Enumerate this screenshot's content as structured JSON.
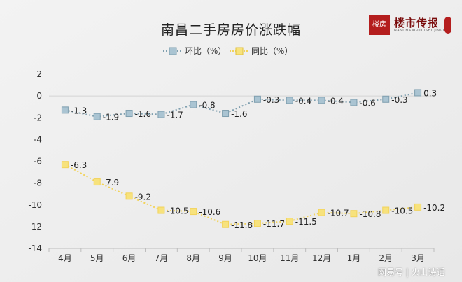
{
  "chart_data": {
    "type": "line",
    "title": "南昌二手房房价涨跌幅",
    "categories": [
      "4月",
      "5月",
      "6月",
      "7月",
      "8月",
      "9月",
      "10月",
      "11月",
      "12月",
      "1月",
      "2月",
      "3月"
    ],
    "series": [
      {
        "name": "环比（%）",
        "values": [
          -1.3,
          -1.9,
          -1.6,
          -1.7,
          -0.8,
          -1.6,
          -0.3,
          -0.4,
          -0.4,
          -0.6,
          -0.3,
          0.3
        ],
        "labels": [
          "-1.3",
          "-1.9",
          "-1.6",
          "-1.7",
          "-0.8",
          "-1.6",
          "-0.3",
          "-0.4",
          "-0.4",
          "-0.6",
          "-0.3",
          "0.3"
        ],
        "color": "#7f9faf",
        "marker_fill": "#aac4d2"
      },
      {
        "name": "同比（%）",
        "values": [
          -6.3,
          -7.9,
          -9.2,
          -10.5,
          -10.6,
          -11.8,
          -11.7,
          -11.5,
          -10.7,
          -10.8,
          -10.5,
          -10.2
        ],
        "labels": [
          "-6.3",
          "-7.9",
          "-9.2",
          "-10.5",
          "-10.6",
          "-11.8",
          "-11.7",
          "-11.5",
          "-10.7",
          "-10.8",
          "-10.5",
          "-10.2"
        ],
        "color": "#f2d35a",
        "marker_fill": "#f7e27c"
      }
    ],
    "yticks": [
      "2",
      "0",
      "-2",
      "-4",
      "-6",
      "-8",
      "-10",
      "-12",
      "-14"
    ],
    "ylim": [
      -14,
      2
    ],
    "grid": false,
    "legend": "top-center"
  },
  "logo": {
    "seal_text": "楼房",
    "name": "楼市传报",
    "sub": "NANCHANGLOUSHIQINGBAO"
  },
  "watermark": "网易号 | 火山诗话"
}
